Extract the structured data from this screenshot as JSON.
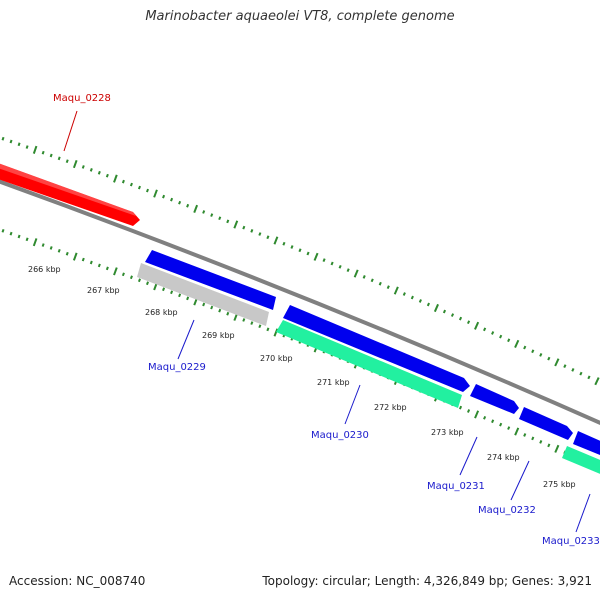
{
  "title": "Marinobacter aquaeolei VT8, complete genome",
  "footer": {
    "accession": "Accession: NC_008740",
    "summary": "Topology: circular; Length: 4,326,849 bp; Genes: 3,921"
  },
  "colors": {
    "backbone": "#808080",
    "tick": "#2f8a2f",
    "highlight_gene": "#ff0000",
    "forward_gene": "#0000ee",
    "reverse_gene": "#22f0a0",
    "other_gene": "#c8c8c8",
    "highlight_label": "#cc0000",
    "label": "#1a1acc"
  },
  "ticks": [
    "266 kbp",
    "267 kbp",
    "268 kbp",
    "269 kbp",
    "270 kbp",
    "271 kbp",
    "272 kbp",
    "273 kbp",
    "274 kbp",
    "275 kbp"
  ],
  "genes": [
    {
      "label": "Maqu_0228",
      "kind": "highlight"
    },
    {
      "label": "Maqu_0229",
      "kind": "label"
    },
    {
      "label": "Maqu_0230",
      "kind": "label"
    },
    {
      "label": "Maqu_0231",
      "kind": "label"
    },
    {
      "label": "Maqu_0232",
      "kind": "label"
    },
    {
      "label": "Maqu_0233",
      "kind": "label"
    }
  ]
}
